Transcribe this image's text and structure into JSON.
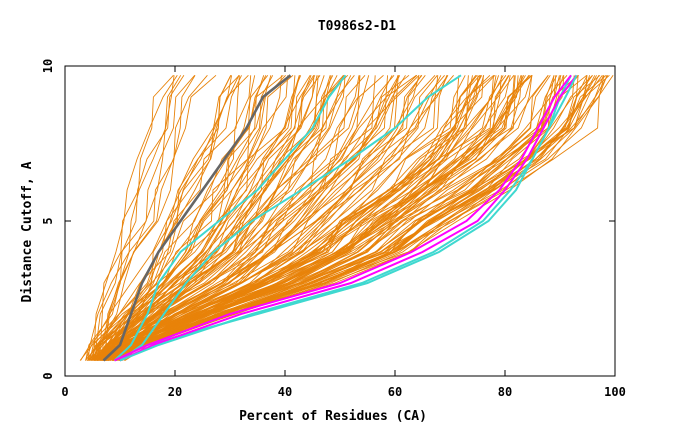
{
  "chart_data": {
    "type": "line",
    "title": "T0986s2-D1",
    "xlabel": "Percent of Residues (CA)",
    "ylabel": "Distance Cutoff, A",
    "xlim": [
      0,
      100
    ],
    "ylim": [
      0,
      10
    ],
    "x_ticks": [
      "0",
      "20",
      "40",
      "60",
      "80",
      "100"
    ],
    "y_ticks": [
      "0",
      "5",
      "10"
    ],
    "grid": false,
    "legend": "none",
    "colors": {
      "background_models": "#e8830a",
      "highlight_gray": "#666666",
      "highlight_cyan": "#3fd8d0",
      "highlight_magenta": "#ff00ff"
    },
    "y_levels": [
      0.5,
      1,
      2,
      3,
      4,
      5,
      6,
      7,
      8,
      9,
      9.7
    ],
    "background_series_envelope": {
      "x_min": [
        4,
        5,
        6,
        7,
        8,
        10,
        11,
        12,
        14,
        15,
        17
      ],
      "x_max": [
        9,
        14,
        30,
        48,
        62,
        70,
        80,
        88,
        95,
        97,
        99
      ]
    },
    "series": [
      {
        "color": "highlight_gray",
        "x": [
          7,
          10,
          12,
          14,
          17,
          21,
          25,
          29,
          33,
          36,
          41
        ],
        "y": [
          0.5,
          1,
          2,
          3,
          4,
          5,
          6,
          7,
          8,
          9,
          9.7
        ]
      },
      {
        "color": "highlight_cyan",
        "x": [
          9,
          12,
          15,
          17,
          21,
          28,
          35,
          40,
          45,
          48,
          51
        ],
        "y": [
          0.5,
          1,
          2,
          3,
          4,
          5,
          6,
          7,
          8,
          9,
          9.7
        ]
      },
      {
        "color": "highlight_cyan",
        "x": [
          10,
          14,
          18,
          22,
          27,
          34,
          43,
          52,
          60,
          66,
          72
        ],
        "y": [
          0.5,
          1,
          2,
          3,
          4,
          5,
          6,
          7,
          8,
          9,
          9.7
        ]
      },
      {
        "color": "highlight_cyan",
        "x": [
          9,
          15,
          35,
          55,
          68,
          77,
          82,
          85,
          88,
          90,
          92
        ],
        "y": [
          0.5,
          1,
          2,
          3,
          4,
          5,
          6,
          7,
          8,
          9,
          9.7
        ]
      },
      {
        "color": "highlight_magenta",
        "x": [
          9,
          15,
          30,
          50,
          63,
          73,
          79,
          83,
          86,
          89,
          92
        ],
        "y": [
          0.5,
          1,
          2,
          3,
          4,
          5,
          6,
          7,
          8,
          9,
          9.7
        ]
      },
      {
        "color": "highlight_magenta",
        "x": [
          10,
          16,
          32,
          52,
          65,
          75,
          80,
          84,
          87,
          90,
          93
        ],
        "y": [
          0.5,
          1,
          2,
          3,
          4,
          5,
          6,
          7,
          8,
          9,
          9.7
        ]
      },
      {
        "color": "highlight_cyan",
        "x": [
          10,
          17,
          34,
          54,
          67,
          76,
          81,
          85,
          88,
          91,
          93
        ],
        "y": [
          0.5,
          1,
          2,
          3,
          4,
          5,
          6,
          7,
          8,
          9,
          9.7
        ]
      }
    ]
  }
}
